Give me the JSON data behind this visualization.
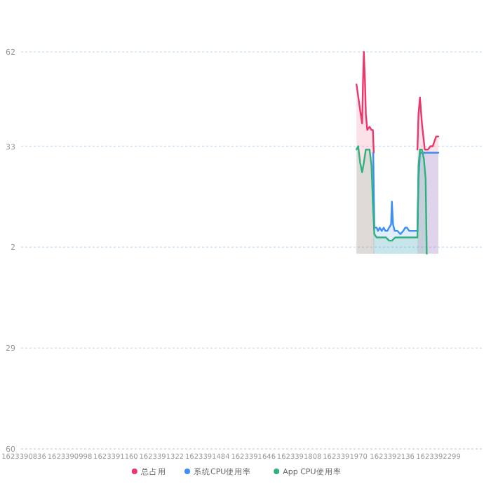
{
  "chart_data": {
    "type": "area",
    "xlim": [
      1623390826,
      1623392460
    ],
    "ylim": [
      -60,
      62
    ],
    "xticks": [
      1623390836,
      1623390998,
      1623391160,
      1623391322,
      1623391484,
      1623391646,
      1623391808,
      1623391970,
      1623392136,
      1623392299
    ],
    "yticks": [
      {
        "value": -60,
        "label": "60"
      },
      {
        "value": -29,
        "label": "29"
      },
      2,
      33,
      62
    ],
    "grid": "y",
    "legend": "bottom",
    "series": [
      {
        "name": "总占用",
        "color": "#e8386c",
        "x": [
          1623392010,
          1623392015,
          1623392023,
          1623392030,
          1623392033,
          1623392036,
          1623392040,
          1623392043,
          1623392048,
          1623392056,
          1623392063,
          1623392068,
          1623392071,
          1623392073,
          1623392225,
          1623392229,
          1623392234,
          1623392241,
          1623392251,
          1623392262,
          1623392271,
          1623392279,
          1623392291,
          1623392299
        ],
        "values": [
          52,
          49,
          44,
          40,
          53,
          62,
          53,
          43,
          38,
          39,
          38,
          38,
          31,
          null,
          32,
          43,
          48,
          40,
          32,
          32,
          33,
          33,
          36,
          36
        ]
      },
      {
        "name": "系统CPU使用率",
        "color": "#3b8ff5",
        "x": [
          1623392069,
          1623392073,
          1623392081,
          1623392086,
          1623392092,
          1623392099,
          1623392106,
          1623392112,
          1623392119,
          1623392125,
          1623392132,
          1623392135,
          1623392139,
          1623392145,
          1623392155,
          1623392165,
          1623392175,
          1623392182,
          1623392188,
          1623392196,
          1623392205,
          1623392213,
          1623392225,
          1623392229,
          1623392234,
          1623392246,
          1623392262,
          1623392279,
          1623392299
        ],
        "values": [
          31,
          8,
          8,
          7,
          8,
          7,
          8,
          7,
          7,
          8,
          9,
          16,
          9,
          7,
          7,
          6,
          7,
          8,
          8,
          7,
          7,
          7,
          7,
          23,
          31,
          31,
          31,
          31,
          31
        ]
      },
      {
        "name": "App CPU使用率",
        "color": "#2fb27c",
        "x": [
          1623392010,
          1623392016,
          1623392023,
          1623392030,
          1623392036,
          1623392043,
          1623392049,
          1623392056,
          1623392063,
          1623392068,
          1623392073,
          1623392081,
          1623392097,
          1623392114,
          1623392125,
          1623392135,
          1623392147,
          1623392163,
          1623392180,
          1623392196,
          1623392213,
          1623392225,
          1623392229,
          1623392234,
          1623392241,
          1623392248,
          1623392254,
          1623392258
        ],
        "values": [
          32,
          33,
          28,
          25,
          28,
          32,
          32,
          32,
          27,
          15,
          6,
          5,
          5,
          5,
          4,
          4,
          5,
          5,
          5,
          5,
          5,
          5,
          27,
          32,
          32,
          29,
          23,
          0
        ]
      }
    ]
  }
}
